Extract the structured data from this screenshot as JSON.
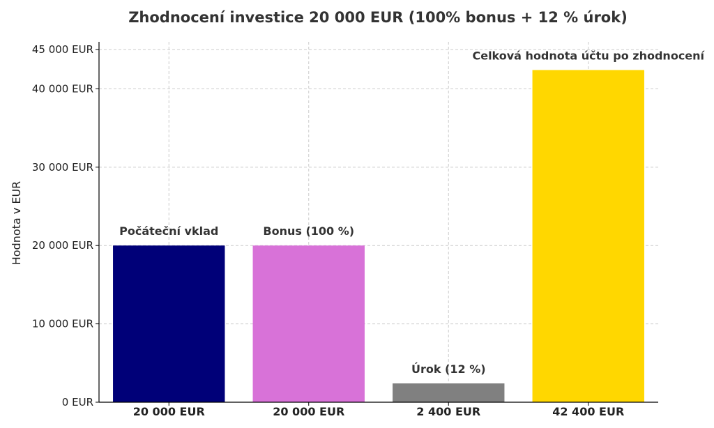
{
  "chart_data": {
    "type": "bar",
    "title": "Zhodnocení investice 20 000 EUR (100% bonus + 12 % úrok)",
    "ylabel": "Hodnota v EUR",
    "xlabel": "",
    "categories": [
      "20 000 EUR",
      "20 000 EUR",
      "2 400 EUR",
      "42 400 EUR"
    ],
    "values": [
      20000,
      20000,
      2400,
      42400
    ],
    "annotations": [
      "Počáteční vklad",
      "Bonus (100 %)",
      "Úrok (12 %)",
      "Celková hodnota účtu po zhodnocení"
    ],
    "colors": [
      "#000078",
      "#d872d8",
      "#808080",
      "#ffd700"
    ],
    "ylim": [
      0,
      46000
    ],
    "yticks": [
      0,
      10000,
      20000,
      30000,
      40000,
      45000
    ],
    "ytick_labels": [
      "0 EUR",
      "10 000 EUR",
      "20 000 EUR",
      "30 000 EUR",
      "40 000 EUR",
      "45 000 EUR"
    ],
    "grid": true,
    "legend": "none"
  }
}
